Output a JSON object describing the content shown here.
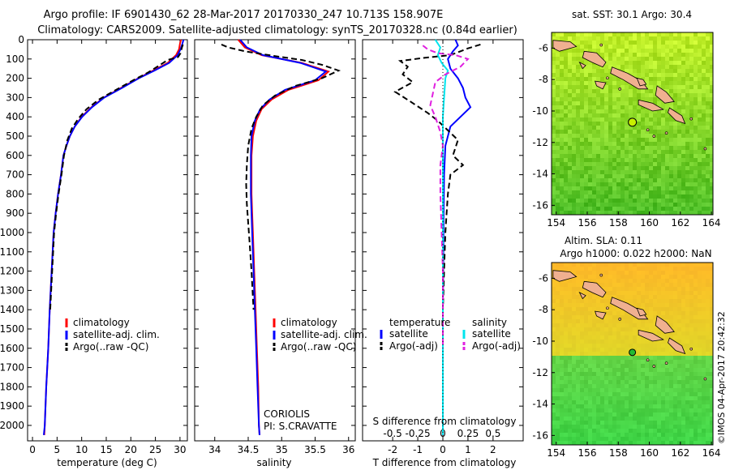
{
  "header": {
    "line1": "Argo profile: IF 6901430_62 28-Mar-2017 20170330_247 10.713S 158.907E",
    "line2": "Climatology: CARS2009. Satellite-adjusted climatology: synTS_20170328.nc (0.84d earlier)"
  },
  "colors": {
    "climatology": "#ff0000",
    "satellite": "#0000ff",
    "argo": "#000000",
    "sat_salinity": "#00e5ee",
    "argo_sal_diff": "#e020e0"
  },
  "chart_data": [
    {
      "type": "line",
      "name": "temperature",
      "xlabel": "temperature (deg C)",
      "ylabel": "",
      "xlim": [
        -1,
        31.5
      ],
      "ylim": [
        2080,
        0
      ],
      "xticks": [
        0,
        5,
        10,
        15,
        20,
        25,
        30
      ],
      "yticks": [
        0,
        100,
        200,
        300,
        400,
        500,
        600,
        700,
        800,
        900,
        1000,
        1100,
        1200,
        1300,
        1400,
        1500,
        1600,
        1700,
        1800,
        1900,
        2000
      ],
      "legend": [
        "climatology",
        "satellite-adj. clim.",
        "Argo(..raw -QC)"
      ],
      "series": [
        {
          "name": "climatology",
          "style": "solid",
          "color": "#ff0000",
          "points": [
            [
              30.2,
              0
            ],
            [
              30.0,
              20
            ],
            [
              29.8,
              50
            ],
            [
              29.2,
              80
            ],
            [
              27.5,
              120
            ],
            [
              24.5,
              160
            ],
            [
              21.5,
              200
            ],
            [
              18.0,
              250
            ],
            [
              14.5,
              300
            ],
            [
              12.0,
              350
            ],
            [
              10.0,
              400
            ],
            [
              8.6,
              450
            ],
            [
              7.6,
              500
            ],
            [
              6.9,
              550
            ],
            [
              6.3,
              600
            ],
            [
              5.8,
              700
            ],
            [
              5.2,
              800
            ],
            [
              4.7,
              900
            ],
            [
              4.3,
              1000
            ],
            [
              3.9,
              1200
            ],
            [
              3.5,
              1400
            ],
            [
              3.2,
              1600
            ],
            [
              2.8,
              1800
            ],
            [
              2.5,
              2000
            ],
            [
              2.4,
              2050
            ]
          ]
        },
        {
          "name": "satellite-adj. clim.",
          "style": "solid",
          "color": "#0000ff",
          "points": [
            [
              30.7,
              0
            ],
            [
              30.5,
              20
            ],
            [
              30.1,
              50
            ],
            [
              29.5,
              80
            ],
            [
              27.8,
              120
            ],
            [
              24.8,
              160
            ],
            [
              21.6,
              200
            ],
            [
              18.2,
              250
            ],
            [
              14.6,
              300
            ],
            [
              12.1,
              350
            ],
            [
              10.1,
              400
            ],
            [
              8.6,
              450
            ],
            [
              7.6,
              500
            ],
            [
              6.9,
              550
            ],
            [
              6.3,
              600
            ],
            [
              5.8,
              700
            ],
            [
              5.2,
              800
            ],
            [
              4.7,
              900
            ],
            [
              4.3,
              1000
            ],
            [
              3.9,
              1200
            ],
            [
              3.5,
              1400
            ],
            [
              3.2,
              1600
            ],
            [
              2.8,
              1800
            ],
            [
              2.5,
              2000
            ],
            [
              2.3,
              2050
            ]
          ]
        },
        {
          "name": "Argo(..raw -QC)",
          "style": "dashed",
          "color": "#000000",
          "points": [
            [
              30.6,
              25
            ],
            [
              30.4,
              40
            ],
            [
              30.1,
              70
            ],
            [
              29.6,
              90
            ],
            [
              27.5,
              105
            ],
            [
              26.0,
              130
            ],
            [
              23.5,
              170
            ],
            [
              20.5,
              210
            ],
            [
              17.0,
              260
            ],
            [
              13.5,
              310
            ],
            [
              11.0,
              360
            ],
            [
              9.3,
              410
            ],
            [
              8.0,
              460
            ],
            [
              7.1,
              520
            ],
            [
              6.4,
              600
            ],
            [
              5.9,
              700
            ],
            [
              5.3,
              800
            ],
            [
              4.8,
              900
            ],
            [
              4.4,
              1000
            ],
            [
              4.0,
              1200
            ],
            [
              3.6,
              1400
            ]
          ]
        }
      ]
    },
    {
      "type": "line",
      "name": "salinity",
      "xlabel": "salinity",
      "ylabel": "",
      "xlim": [
        33.7,
        36.1
      ],
      "ylim": [
        2080,
        0
      ],
      "xticks": [
        34,
        34.5,
        35,
        35.5,
        36
      ],
      "legend": [
        "climatology",
        "satellite-adj. clim.",
        "Argo(..raw -QC)"
      ],
      "annotations": [
        "CORIOLIS",
        "PI: S.CRAVATTE"
      ],
      "series": [
        {
          "name": "climatology",
          "style": "solid",
          "color": "#ff0000",
          "points": [
            [
              34.35,
              0
            ],
            [
              34.45,
              40
            ],
            [
              34.7,
              80
            ],
            [
              35.3,
              120
            ],
            [
              35.7,
              165
            ],
            [
              35.55,
              210
            ],
            [
              35.1,
              260
            ],
            [
              34.85,
              310
            ],
            [
              34.7,
              360
            ],
            [
              34.62,
              420
            ],
            [
              34.57,
              500
            ],
            [
              34.55,
              600
            ],
            [
              34.55,
              700
            ],
            [
              34.55,
              800
            ],
            [
              34.56,
              900
            ],
            [
              34.57,
              1000
            ],
            [
              34.59,
              1200
            ],
            [
              34.61,
              1400
            ],
            [
              34.63,
              1600
            ],
            [
              34.65,
              1800
            ],
            [
              34.66,
              2000
            ],
            [
              34.67,
              2050
            ]
          ]
        },
        {
          "name": "satellite-adj. clim.",
          "style": "solid",
          "color": "#0000ff",
          "points": [
            [
              34.38,
              0
            ],
            [
              34.48,
              40
            ],
            [
              34.72,
              80
            ],
            [
              35.28,
              120
            ],
            [
              35.66,
              165
            ],
            [
              35.5,
              210
            ],
            [
              35.05,
              260
            ],
            [
              34.82,
              310
            ],
            [
              34.68,
              360
            ],
            [
              34.6,
              420
            ],
            [
              34.55,
              500
            ],
            [
              34.54,
              600
            ],
            [
              34.54,
              700
            ],
            [
              34.54,
              800
            ],
            [
              34.55,
              900
            ],
            [
              34.56,
              1000
            ],
            [
              34.58,
              1200
            ],
            [
              34.6,
              1400
            ],
            [
              34.62,
              1600
            ],
            [
              34.64,
              1800
            ],
            [
              34.66,
              2000
            ],
            [
              34.67,
              2050
            ]
          ]
        },
        {
          "name": "Argo(..raw -QC)",
          "style": "dashed",
          "color": "#000000",
          "points": [
            [
              34.1,
              25
            ],
            [
              34.2,
              40
            ],
            [
              34.45,
              60
            ],
            [
              34.9,
              85
            ],
            [
              35.3,
              105
            ],
            [
              35.6,
              130
            ],
            [
              35.85,
              160
            ],
            [
              35.6,
              200
            ],
            [
              35.2,
              240
            ],
            [
              34.9,
              290
            ],
            [
              34.72,
              340
            ],
            [
              34.62,
              400
            ],
            [
              34.55,
              460
            ],
            [
              34.5,
              550
            ],
            [
              34.48,
              650
            ],
            [
              34.47,
              750
            ],
            [
              34.48,
              850
            ],
            [
              34.5,
              950
            ],
            [
              34.52,
              1050
            ],
            [
              34.55,
              1200
            ],
            [
              34.58,
              1400
            ]
          ]
        }
      ]
    },
    {
      "type": "line",
      "name": "differences",
      "xlabel": "T difference from climatology",
      "xlabel_top": "S difference from climatology",
      "xlim": [
        -3.2,
        3.2
      ],
      "ylim": [
        2080,
        0
      ],
      "xticks": [
        -2,
        -1,
        0,
        1,
        2
      ],
      "xticks_salinity": [
        -0.5,
        -0.25,
        0,
        0.25,
        0.5
      ],
      "legend_titles": [
        "temperature",
        "salinity"
      ],
      "legend": [
        "satellite",
        "Argo(-adj)",
        "satellite",
        "Argo(-adj)"
      ],
      "series": [
        {
          "name": "temperature satellite",
          "style": "solid",
          "color": "#0000ff",
          "points": [
            [
              0.5,
              0
            ],
            [
              0.6,
              30
            ],
            [
              0.4,
              60
            ],
            [
              0.2,
              100
            ],
            [
              0.3,
              150
            ],
            [
              0.6,
              200
            ],
            [
              0.8,
              250
            ],
            [
              0.9,
              300
            ],
            [
              1.1,
              350
            ],
            [
              0.7,
              400
            ],
            [
              0.3,
              450
            ],
            [
              0.1,
              550
            ],
            [
              0.05,
              700
            ],
            [
              0.03,
              900
            ],
            [
              0.02,
              1100
            ],
            [
              0.0,
              1400
            ],
            [
              0.0,
              1700
            ],
            [
              0.0,
              2050
            ]
          ]
        },
        {
          "name": "temperature Argo(-adj)",
          "style": "dashed",
          "color": "#000000",
          "points": [
            [
              1.5,
              25
            ],
            [
              1.0,
              45
            ],
            [
              0.7,
              60
            ],
            [
              0.3,
              80
            ],
            [
              -0.8,
              95
            ],
            [
              -1.7,
              110
            ],
            [
              -1.4,
              140
            ],
            [
              -1.6,
              180
            ],
            [
              -1.2,
              220
            ],
            [
              -1.9,
              270
            ],
            [
              -1.3,
              320
            ],
            [
              -0.6,
              380
            ],
            [
              -0.2,
              420
            ],
            [
              0.2,
              470
            ],
            [
              0.6,
              520
            ],
            [
              0.4,
              600
            ],
            [
              0.8,
              650
            ],
            [
              0.3,
              700
            ],
            [
              0.2,
              800
            ],
            [
              0.15,
              900
            ],
            [
              0.1,
              1000
            ],
            [
              0.05,
              1200
            ],
            [
              0.0,
              1400
            ],
            [
              0.0,
              1600
            ]
          ]
        },
        {
          "name": "salinity satellite",
          "style": "solid",
          "color": "#00e5ee",
          "points": [
            [
              -0.3,
              0
            ],
            [
              -0.1,
              40
            ],
            [
              -0.2,
              80
            ],
            [
              -0.05,
              120
            ],
            [
              0.2,
              160
            ],
            [
              0.1,
              200
            ],
            [
              0.05,
              300
            ],
            [
              0.0,
              400
            ],
            [
              0.0,
              600
            ],
            [
              0.0,
              800
            ],
            [
              0.0,
              1200
            ],
            [
              0.0,
              1600
            ],
            [
              0.0,
              2050
            ]
          ]
        },
        {
          "name": "salinity Argo(-adj)",
          "style": "dashed",
          "color": "#e020e0",
          "points": [
            [
              -0.8,
              30
            ],
            [
              -0.6,
              50
            ],
            [
              -0.2,
              70
            ],
            [
              0.5,
              80
            ],
            [
              1.0,
              100
            ],
            [
              0.7,
              140
            ],
            [
              0.1,
              180
            ],
            [
              -0.3,
              220
            ],
            [
              -0.4,
              280
            ],
            [
              -0.5,
              340
            ],
            [
              -0.3,
              400
            ],
            [
              -0.1,
              480
            ],
            [
              0.0,
              550
            ],
            [
              -0.1,
              650
            ],
            [
              -0.1,
              800
            ],
            [
              -0.05,
              1000
            ],
            [
              0.0,
              1200
            ],
            [
              0.0,
              1400
            ],
            [
              0.0,
              1600
            ]
          ]
        }
      ]
    },
    {
      "type": "heatmap",
      "name": "sst-map",
      "title": "sat. SST: 30.1  Argo: 30.4",
      "xlim": [
        153.7,
        164.1
      ],
      "ylim": [
        -16.6,
        -5.0
      ],
      "xticks": [
        154,
        156,
        158,
        160,
        162,
        164
      ],
      "yticks": [
        -6,
        -8,
        -10,
        -12,
        -14,
        -16
      ],
      "argo_position": {
        "lon": 158.907,
        "lat": -10.713
      },
      "argo_marker_color": "#c8f000"
    },
    {
      "type": "heatmap",
      "name": "sla-map",
      "title": "Altim. SLA: 0.11",
      "subtitle": "Argo h1000: 0.022  h2000: NaN",
      "xlim": [
        153.7,
        164.1
      ],
      "ylim": [
        -16.6,
        -5.0
      ],
      "xticks": [
        154,
        156,
        158,
        160,
        162,
        164
      ],
      "yticks": [
        -6,
        -8,
        -10,
        -12,
        -14,
        -16
      ],
      "argo_position": {
        "lon": 158.907,
        "lat": -10.713
      },
      "argo_marker_color": "#22bb33"
    }
  ],
  "footer": {
    "stamp": "©IMOS 04-Apr-2017 20:42:32"
  }
}
